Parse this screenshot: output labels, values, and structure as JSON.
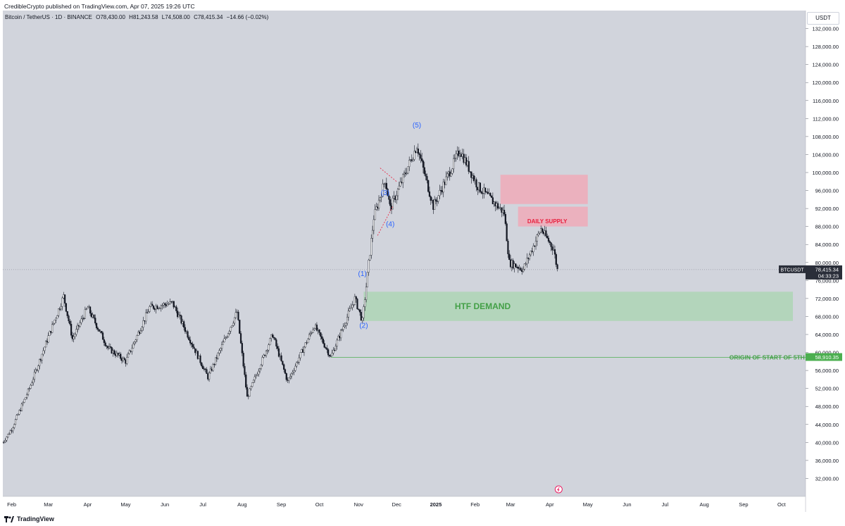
{
  "header": {
    "publisher_text": "CredibleCrypto published on TradingView.com, Apr 07, 2025 19:26 UTC"
  },
  "legend": {
    "symbol": "Bitcoin / TetherUS · 1D · BINANCE",
    "open": "O78,430.00",
    "high": "H81,243.58",
    "low": "L74,508.00",
    "close": "C78,415.34",
    "change": "−14.66 (−0.02%)"
  },
  "price_scale": {
    "currency": "USDT",
    "ticks": [
      "132,000.00",
      "128,000.00",
      "124,000.00",
      "120,000.00",
      "116,000.00",
      "112,000.00",
      "108,000.00",
      "104,000.00",
      "100,000.00",
      "96,000.00",
      "92,000.00",
      "88,000.00",
      "84,000.00",
      "80,000.00",
      "76,000.00",
      "72,000.00",
      "68,000.00",
      "64,000.00",
      "60,000.00",
      "56,000.00",
      "52,000.00",
      "48,000.00",
      "44,000.00",
      "40,000.00",
      "36,000.00",
      "32,000.00"
    ],
    "last_price_label": "78,415.34",
    "symbol_tag": "BTCUSDT",
    "countdown": "04:33:23",
    "origin_price_label": "58,910.35"
  },
  "time_scale": {
    "ticks": [
      "Feb",
      "Mar",
      "Apr",
      "May",
      "Jun",
      "Jul",
      "Aug",
      "Sep",
      "Oct",
      "Nov",
      "Dec",
      "2025",
      "Feb",
      "Mar",
      "Apr",
      "May",
      "Jun",
      "Jul",
      "Aug",
      "Sep",
      "Oct"
    ]
  },
  "annotations": {
    "wave_1": "(1)",
    "wave_2": "(2)",
    "wave_3": "(3)",
    "wave_4": "(4)",
    "wave_5": "(5)",
    "daily_supply": "DAILY SUPPLY",
    "htf_demand": "HTF DEMAND",
    "origin": "ORIGIN OF START OF 5TH WAVE"
  },
  "footer": {
    "brand": "TradingView"
  },
  "colors": {
    "background": "#d1d4dc",
    "candle": "#131722",
    "wave_label": "#2962ff",
    "supply_zone": "#f3a6b4",
    "supply_text": "#e91e3c",
    "demand_zone": "#a8d5b0",
    "demand_text": "#43a047",
    "origin_line": "#4caf50",
    "wedge_line": "#e91e3c"
  },
  "chart_data": {
    "type": "candlestick",
    "title": "Bitcoin / TetherUS · 1D · BINANCE",
    "ylim": [
      28000,
      136000
    ],
    "x_range": [
      "2024-01-25",
      "2025-10-20"
    ],
    "approx_close_path": [
      {
        "date": "2024-01-25",
        "close": 40000
      },
      {
        "date": "2024-02-01",
        "close": 43000
      },
      {
        "date": "2024-02-15",
        "close": 52000
      },
      {
        "date": "2024-02-28",
        "close": 62000
      },
      {
        "date": "2024-03-13",
        "close": 72500
      },
      {
        "date": "2024-03-20",
        "close": 63000
      },
      {
        "date": "2024-04-01",
        "close": 70000
      },
      {
        "date": "2024-04-17",
        "close": 61000
      },
      {
        "date": "2024-05-01",
        "close": 58000
      },
      {
        "date": "2024-05-20",
        "close": 70000
      },
      {
        "date": "2024-06-07",
        "close": 71000
      },
      {
        "date": "2024-06-24",
        "close": 61000
      },
      {
        "date": "2024-07-05",
        "close": 54500
      },
      {
        "date": "2024-07-28",
        "close": 69000
      },
      {
        "date": "2024-08-05",
        "close": 50000
      },
      {
        "date": "2024-08-25",
        "close": 64000
      },
      {
        "date": "2024-09-06",
        "close": 53500
      },
      {
        "date": "2024-09-27",
        "close": 66000
      },
      {
        "date": "2024-10-10",
        "close": 59000
      },
      {
        "date": "2024-10-29",
        "close": 72000
      },
      {
        "date": "2024-11-04",
        "close": 67000
      },
      {
        "date": "2024-11-13",
        "close": 90000
      },
      {
        "date": "2024-11-22",
        "close": 98500
      },
      {
        "date": "2024-11-26",
        "close": 92000
      },
      {
        "date": "2024-12-17",
        "close": 106000
      },
      {
        "date": "2024-12-30",
        "close": 92500
      },
      {
        "date": "2025-01-20",
        "close": 105000
      },
      {
        "date": "2025-02-03",
        "close": 97000
      },
      {
        "date": "2025-02-24",
        "close": 91000
      },
      {
        "date": "2025-02-28",
        "close": 80000
      },
      {
        "date": "2025-03-11",
        "close": 78500
      },
      {
        "date": "2025-03-25",
        "close": 87500
      },
      {
        "date": "2025-04-04",
        "close": 83000
      },
      {
        "date": "2025-04-07",
        "close": 78415.34
      }
    ],
    "zones": [
      {
        "label": "DAILY SUPPLY",
        "from": "2025-02-21",
        "to": "2025-05-01",
        "low": 88000,
        "high": 99500
      },
      {
        "label": "HTF DEMAND",
        "from": "2024-11-05",
        "to": "2025-10-10",
        "low": 67000,
        "high": 73500
      }
    ],
    "levels": [
      {
        "label": "ORIGIN OF START OF 5TH WAVE",
        "value": 58910.35
      }
    ],
    "wave_labels": [
      {
        "label": "(1)",
        "date": "2024-11-04",
        "price": 77000
      },
      {
        "label": "(2)",
        "date": "2024-11-05",
        "price": 65500
      },
      {
        "label": "(3)",
        "date": "2024-11-22",
        "price": 95000
      },
      {
        "label": "(4)",
        "date": "2024-11-26",
        "price": 88000
      },
      {
        "label": "(5)",
        "date": "2024-12-17",
        "price": 110000
      }
    ],
    "last_price": 78415.34
  }
}
